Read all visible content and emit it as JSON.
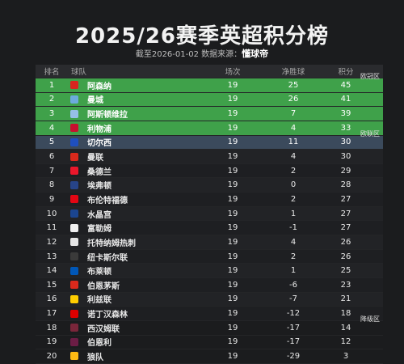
{
  "title": "2025/26赛季英超积分榜",
  "subtitle": {
    "prefix": "截至2026-01-02 数据来源：",
    "source": "懂球帝"
  },
  "table": {
    "columns": {
      "rank": "排名",
      "team": "球队",
      "played": "场次",
      "gd": "净胜球",
      "pts": "积分"
    },
    "zones": {
      "europe": "欧冠区",
      "europa": "欧联区",
      "relegation": "降级区"
    },
    "rows": [
      {
        "rank": "1",
        "team": "阿森纳",
        "played": "19",
        "gd": "25",
        "pts": "45",
        "badge_color": "#d7261f",
        "zone": "europe"
      },
      {
        "rank": "2",
        "team": "曼城",
        "played": "19",
        "gd": "26",
        "pts": "41",
        "badge_color": "#6cabdd",
        "zone": "europe"
      },
      {
        "rank": "3",
        "team": "阿斯顿维拉",
        "played": "19",
        "gd": "7",
        "pts": "39",
        "badge_color": "#95bfe5",
        "zone": "europe"
      },
      {
        "rank": "4",
        "team": "利物浦",
        "played": "19",
        "gd": "4",
        "pts": "33",
        "badge_color": "#c8102e",
        "zone": "europe"
      },
      {
        "rank": "5",
        "team": "切尔西",
        "played": "19",
        "gd": "11",
        "pts": "30",
        "badge_color": "#1f4fbf",
        "zone": "europa"
      },
      {
        "rank": "6",
        "team": "曼联",
        "played": "19",
        "gd": "4",
        "pts": "30",
        "badge_color": "#da291c",
        "zone": "mid"
      },
      {
        "rank": "7",
        "team": "桑德兰",
        "played": "19",
        "gd": "2",
        "pts": "29",
        "badge_color": "#eb172b",
        "zone": "mid"
      },
      {
        "rank": "8",
        "team": "埃弗顿",
        "played": "19",
        "gd": "0",
        "pts": "28",
        "badge_color": "#274488",
        "zone": "mid"
      },
      {
        "rank": "9",
        "team": "布伦特福德",
        "played": "19",
        "gd": "2",
        "pts": "27",
        "badge_color": "#e30613",
        "zone": "mid"
      },
      {
        "rank": "10",
        "team": "水晶宫",
        "played": "19",
        "gd": "1",
        "pts": "27",
        "badge_color": "#1b458f",
        "zone": "mid"
      },
      {
        "rank": "11",
        "team": "富勒姆",
        "played": "19",
        "gd": "-1",
        "pts": "27",
        "badge_color": "#f0f0f0",
        "zone": "mid"
      },
      {
        "rank": "12",
        "team": "托特纳姆热刺",
        "played": "19",
        "gd": "4",
        "pts": "26",
        "badge_color": "#e6e6e6",
        "zone": "mid"
      },
      {
        "rank": "13",
        "team": "纽卡斯尔联",
        "played": "19",
        "gd": "2",
        "pts": "26",
        "badge_color": "#3a3a3a",
        "zone": "mid"
      },
      {
        "rank": "14",
        "team": "布莱顿",
        "played": "19",
        "gd": "1",
        "pts": "25",
        "badge_color": "#0057b8",
        "zone": "mid"
      },
      {
        "rank": "15",
        "team": "伯恩茅斯",
        "played": "19",
        "gd": "-6",
        "pts": "23",
        "badge_color": "#da291c",
        "zone": "mid"
      },
      {
        "rank": "16",
        "team": "利兹联",
        "played": "19",
        "gd": "-7",
        "pts": "21",
        "badge_color": "#ffcd00",
        "zone": "mid"
      },
      {
        "rank": "17",
        "team": "诺丁汉森林",
        "played": "19",
        "gd": "-12",
        "pts": "18",
        "badge_color": "#dd0000",
        "zone": "mid"
      },
      {
        "rank": "18",
        "team": "西汉姆联",
        "played": "19",
        "gd": "-17",
        "pts": "14",
        "badge_color": "#7a263a",
        "zone": "relegation"
      },
      {
        "rank": "19",
        "team": "伯恩利",
        "played": "19",
        "gd": "-17",
        "pts": "12",
        "badge_color": "#6c1d45",
        "zone": "relegation"
      },
      {
        "rank": "20",
        "team": "狼队",
        "played": "19",
        "gd": "-29",
        "pts": "3",
        "badge_color": "#fdb913",
        "zone": "relegation"
      }
    ]
  }
}
